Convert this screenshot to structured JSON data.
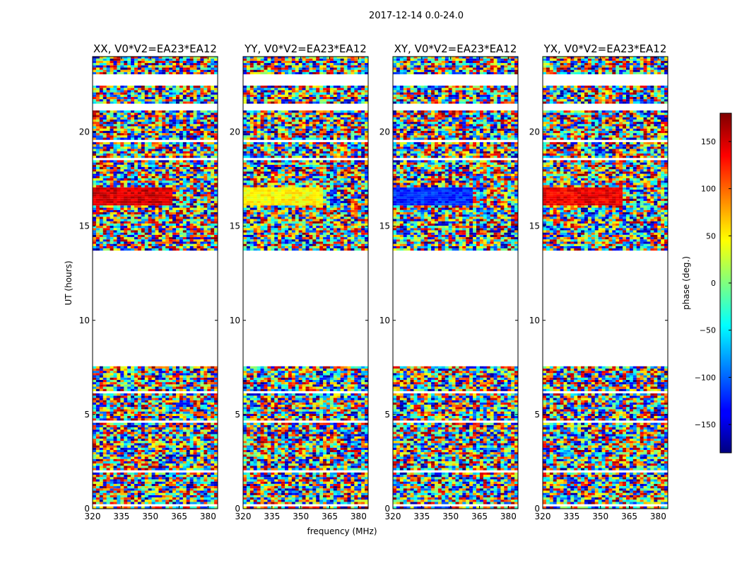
{
  "chart_data": {
    "type": "heatmap",
    "suptitle": "2017-12-14 0.0-24.0",
    "xlabel": "frequency (MHz)",
    "ylabel": "UT (hours)",
    "xlim": [
      320,
      385
    ],
    "ylim": [
      0,
      24
    ],
    "xticks": [
      "320",
      "335",
      "350",
      "365",
      "380"
    ],
    "xtick_values": [
      320,
      335,
      350,
      365,
      380
    ],
    "yticks": [
      "0",
      "5",
      "10",
      "15",
      "20"
    ],
    "ytick_values": [
      0,
      5,
      10,
      15,
      20
    ],
    "panels": [
      {
        "title": "XX, V0*V2=EA23*EA12",
        "coherent_phase_band": {
          "ut_range": [
            16.0,
            17.0
          ],
          "freq_range": [
            320,
            361
          ],
          "phase_deg": 150
        }
      },
      {
        "title": "YY, V0*V2=EA23*EA12",
        "coherent_phase_band": {
          "ut_range": [
            16.0,
            17.0
          ],
          "freq_range": [
            320,
            361
          ],
          "phase_deg": 45
        }
      },
      {
        "title": "XY, V0*V2=EA23*EA12",
        "coherent_phase_band": {
          "ut_range": [
            16.0,
            17.0
          ],
          "freq_range": [
            320,
            361
          ],
          "phase_deg": -120
        }
      },
      {
        "title": "YX, V0*V2=EA23*EA12",
        "coherent_phase_band": {
          "ut_range": [
            16.0,
            17.0
          ],
          "freq_range": [
            320,
            361
          ],
          "phase_deg": 140
        }
      }
    ],
    "data_ut_ranges": [
      [
        0,
        7.5
      ],
      [
        13.7,
        24
      ]
    ],
    "gap_ut_range": [
      7.5,
      13.7
    ],
    "colorbar": {
      "label": "phase (deg.)",
      "range": [
        -180,
        180
      ],
      "ticks": [
        "150",
        "100",
        "50",
        "0",
        "−50",
        "−100",
        "−150"
      ],
      "tick_values": [
        150,
        100,
        50,
        0,
        -50,
        -100,
        -150
      ],
      "colormap": "jet"
    }
  }
}
